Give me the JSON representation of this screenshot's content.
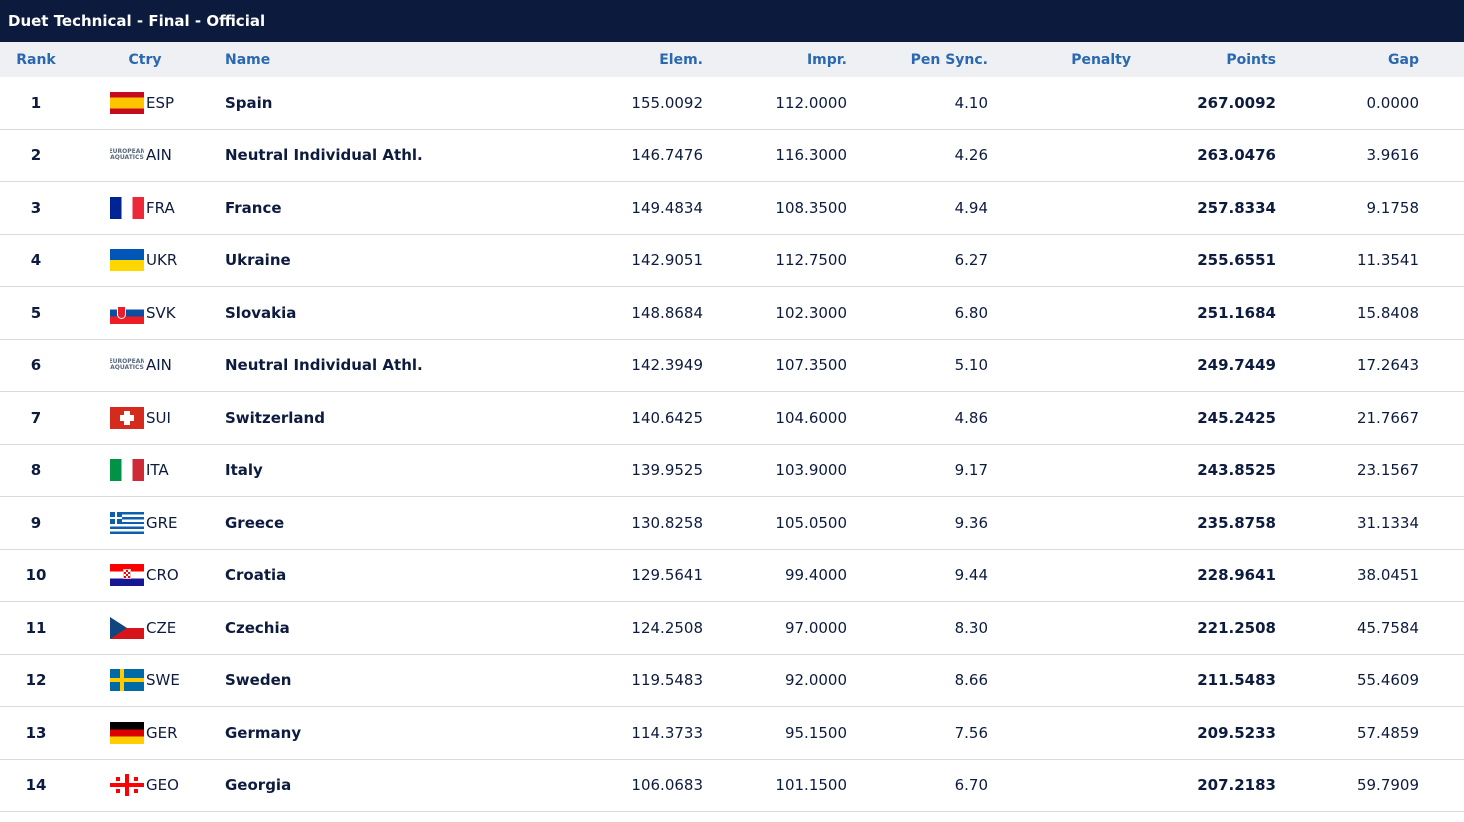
{
  "title": {
    "event": "Duet Technical - Final",
    "sep": " - ",
    "status": "Official"
  },
  "columns": {
    "rank": "Rank",
    "ctry": "Ctry",
    "name": "Name",
    "elem": "Elem.",
    "impr": "Impr.",
    "pen_sync": "Pen Sync.",
    "penalty": "Penalty",
    "points": "Points",
    "gap": "Gap"
  },
  "rows": [
    {
      "rank": "1",
      "code": "ESP",
      "name": "Spain",
      "elem": "155.0092",
      "impr": "112.0000",
      "pen_sync": "4.10",
      "penalty": "",
      "points": "267.0092",
      "gap": "0.0000",
      "flag": "spain-flag-icon"
    },
    {
      "rank": "2",
      "code": "AIN",
      "name": "Neutral Individual Athl.",
      "elem": "146.7476",
      "impr": "116.3000",
      "pen_sync": "4.26",
      "penalty": "",
      "points": "263.0476",
      "gap": "3.9616",
      "flag": "european-aquatics-logo-icon"
    },
    {
      "rank": "3",
      "code": "FRA",
      "name": "France",
      "elem": "149.4834",
      "impr": "108.3500",
      "pen_sync": "4.94",
      "penalty": "",
      "points": "257.8334",
      "gap": "9.1758",
      "flag": "france-flag-icon"
    },
    {
      "rank": "4",
      "code": "UKR",
      "name": "Ukraine",
      "elem": "142.9051",
      "impr": "112.7500",
      "pen_sync": "6.27",
      "penalty": "",
      "points": "255.6551",
      "gap": "11.3541",
      "flag": "ukraine-flag-icon"
    },
    {
      "rank": "5",
      "code": "SVK",
      "name": "Slovakia",
      "elem": "148.8684",
      "impr": "102.3000",
      "pen_sync": "6.80",
      "penalty": "",
      "points": "251.1684",
      "gap": "15.8408",
      "flag": "slovakia-flag-icon"
    },
    {
      "rank": "6",
      "code": "AIN",
      "name": "Neutral Individual Athl.",
      "elem": "142.3949",
      "impr": "107.3500",
      "pen_sync": "5.10",
      "penalty": "",
      "points": "249.7449",
      "gap": "17.2643",
      "flag": "european-aquatics-logo-icon"
    },
    {
      "rank": "7",
      "code": "SUI",
      "name": "Switzerland",
      "elem": "140.6425",
      "impr": "104.6000",
      "pen_sync": "4.86",
      "penalty": "",
      "points": "245.2425",
      "gap": "21.7667",
      "flag": "switzerland-flag-icon"
    },
    {
      "rank": "8",
      "code": "ITA",
      "name": "Italy",
      "elem": "139.9525",
      "impr": "103.9000",
      "pen_sync": "9.17",
      "penalty": "",
      "points": "243.8525",
      "gap": "23.1567",
      "flag": "italy-flag-icon"
    },
    {
      "rank": "9",
      "code": "GRE",
      "name": "Greece",
      "elem": "130.8258",
      "impr": "105.0500",
      "pen_sync": "9.36",
      "penalty": "",
      "points": "235.8758",
      "gap": "31.1334",
      "flag": "greece-flag-icon"
    },
    {
      "rank": "10",
      "code": "CRO",
      "name": "Croatia",
      "elem": "129.5641",
      "impr": "99.4000",
      "pen_sync": "9.44",
      "penalty": "",
      "points": "228.9641",
      "gap": "38.0451",
      "flag": "croatia-flag-icon"
    },
    {
      "rank": "11",
      "code": "CZE",
      "name": "Czechia",
      "elem": "124.2508",
      "impr": "97.0000",
      "pen_sync": "8.30",
      "penalty": "",
      "points": "221.2508",
      "gap": "45.7584",
      "flag": "czechia-flag-icon"
    },
    {
      "rank": "12",
      "code": "SWE",
      "name": "Sweden",
      "elem": "119.5483",
      "impr": "92.0000",
      "pen_sync": "8.66",
      "penalty": "",
      "points": "211.5483",
      "gap": "55.4609",
      "flag": "sweden-flag-icon"
    },
    {
      "rank": "13",
      "code": "GER",
      "name": "Germany",
      "elem": "114.3733",
      "impr": "95.1500",
      "pen_sync": "7.56",
      "penalty": "",
      "points": "209.5233",
      "gap": "57.4859",
      "flag": "germany-flag-icon"
    },
    {
      "rank": "14",
      "code": "GEO",
      "name": "Georgia",
      "elem": "106.0683",
      "impr": "101.1500",
      "pen_sync": "6.70",
      "penalty": "",
      "points": "207.2183",
      "gap": "59.7909",
      "flag": "georgia-flag-icon"
    }
  ],
  "ain_logo_text": [
    "EUROPEAN",
    "AQUATICS"
  ],
  "colors": {
    "title_bg": "#0b1a3d",
    "header_bg": "#eef0f3",
    "header_text": "#2a68b1",
    "row_text": "#0d1b3e",
    "divider": "#d7dbe1"
  }
}
